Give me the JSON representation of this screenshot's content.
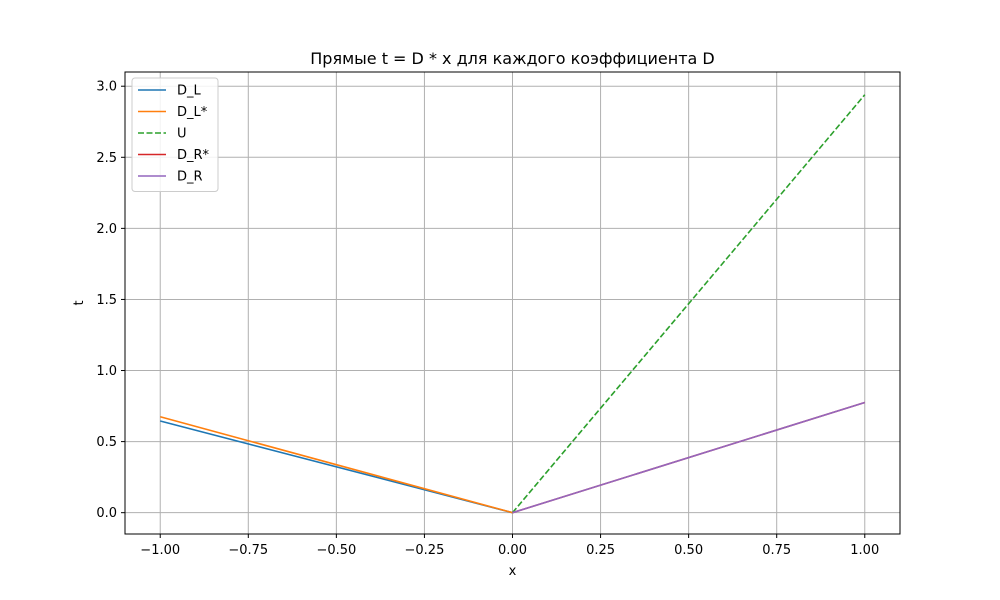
{
  "chart_data": {
    "type": "line",
    "title": "Прямые t = D * x для каждого коэффициента D",
    "xlabel": "x",
    "ylabel": "t",
    "xlim": [
      -1.1,
      1.1
    ],
    "ylim": [
      -0.15,
      3.1
    ],
    "xticks": [
      -1.0,
      -0.75,
      -0.5,
      -0.25,
      0.0,
      0.25,
      0.5,
      0.75,
      1.0
    ],
    "xtick_labels": [
      "−1.00",
      "−0.75",
      "−0.50",
      "−0.25",
      "0.00",
      "0.25",
      "0.50",
      "0.75",
      "1.00"
    ],
    "yticks": [
      0.0,
      0.5,
      1.0,
      1.5,
      2.0,
      2.5,
      3.0
    ],
    "ytick_labels": [
      "0.0",
      "0.5",
      "1.0",
      "1.5",
      "2.0",
      "2.5",
      "3.0"
    ],
    "grid": true,
    "legend_position": "top-left",
    "series": [
      {
        "name": "D_L",
        "color": "#1f77b4",
        "dash": "solid",
        "x": [
          -1.0,
          0.0
        ],
        "y": [
          0.645,
          0.0
        ]
      },
      {
        "name": "D_L*",
        "color": "#ff7f0e",
        "dash": "solid",
        "x": [
          -1.0,
          0.0
        ],
        "y": [
          0.675,
          0.0
        ]
      },
      {
        "name": "U",
        "color": "#2ca02c",
        "dash": "dashed",
        "x": [
          0.0,
          1.0
        ],
        "y": [
          0.0,
          2.94
        ]
      },
      {
        "name": "D_R*",
        "color": "#d62728",
        "dash": "solid",
        "x": [
          0.0,
          1.0
        ],
        "y": [
          0.0,
          0.775
        ]
      },
      {
        "name": "D_R",
        "color": "#9467bd",
        "dash": "solid",
        "x": [
          0.0,
          1.0
        ],
        "y": [
          0.0,
          0.775
        ]
      }
    ]
  }
}
